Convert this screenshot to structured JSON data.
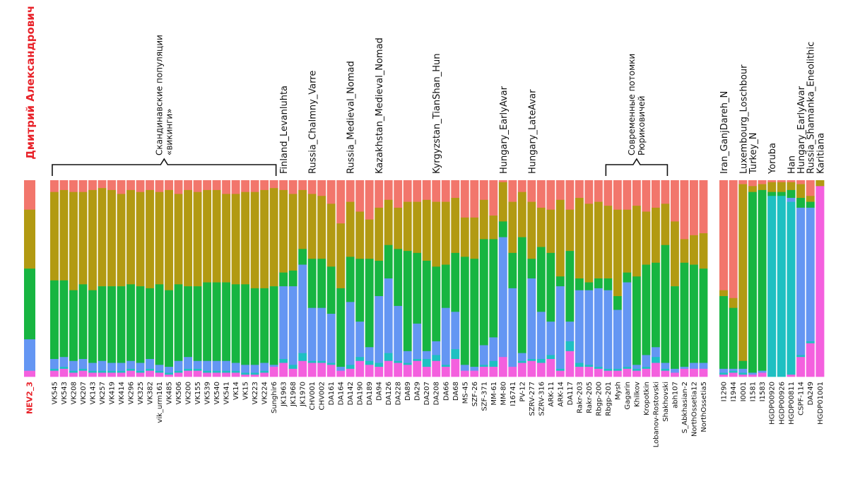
{
  "chart_data": {
    "type": "bar",
    "stacked": true,
    "orientation": "vertical",
    "ylim": [
      0,
      1
    ],
    "component_colors": [
      "#F2766C",
      "#B29A12",
      "#17B541",
      "#6496F3",
      "#1EC0C2",
      "#F460DE"
    ],
    "author": "Дмитрий Александрович",
    "groups": [
      {
        "id": "ref",
        "samples": [
          "NEV2_3"
        ],
        "values": [
          [
            0.15,
            0.3,
            0.36,
            0.16,
            0.0,
            0.03
          ]
        ]
      },
      {
        "id": "main",
        "samples": [
          "VK545",
          "VK543",
          "VK208",
          "VK207",
          "VK143",
          "VK257",
          "VK419",
          "VK414",
          "VK296",
          "VK325",
          "VK382",
          "vik_urm161",
          "VK485",
          "VK506",
          "VK200",
          "VK155",
          "VK539",
          "VK540",
          "VK541",
          "VK14",
          "VK15",
          "VK223",
          "VK224",
          "Sunghir6",
          "JK1963",
          "JK1968",
          "JK1970",
          "CHV001",
          "CHV002",
          "DA161",
          "DA164",
          "DA142",
          "DA190",
          "DA189",
          "DA94",
          "DA126",
          "DA228",
          "DA89",
          "DA29",
          "DA207",
          "DA208",
          "DA66",
          "DA68",
          "MS-45",
          "SZF-26",
          "SZF-371",
          "MM-61",
          "MM-80",
          "I16741",
          "PV-12",
          "SZRV-277",
          "SZRV-316",
          "ARK-11",
          "ARK-14",
          "DA117",
          "Rakr-203",
          "Rakr-205",
          "Rbgp-200",
          "Rbgp-201",
          "Mysh",
          "Gagarin",
          "Khilkov",
          "Kropotkin",
          "Lobanov-Rostovski",
          "Shakhovski",
          "abh107",
          "S_Abkhasian-2",
          "NorthOssetia12",
          "NorthOssetia5"
        ],
        "values": [
          [
            0.06,
            0.45,
            0.4,
            0.05,
            0.01,
            0.03
          ],
          [
            0.05,
            0.46,
            0.39,
            0.05,
            0.01,
            0.04
          ],
          [
            0.06,
            0.5,
            0.36,
            0.05,
            0.01,
            0.02
          ],
          [
            0.06,
            0.47,
            0.38,
            0.05,
            0.01,
            0.03
          ],
          [
            0.05,
            0.51,
            0.37,
            0.04,
            0.01,
            0.02
          ],
          [
            0.04,
            0.5,
            0.38,
            0.05,
            0.01,
            0.02
          ],
          [
            0.05,
            0.49,
            0.39,
            0.04,
            0.01,
            0.02
          ],
          [
            0.07,
            0.47,
            0.39,
            0.04,
            0.01,
            0.02
          ],
          [
            0.05,
            0.48,
            0.39,
            0.04,
            0.01,
            0.03
          ],
          [
            0.06,
            0.48,
            0.39,
            0.04,
            0.01,
            0.02
          ],
          [
            0.05,
            0.5,
            0.36,
            0.05,
            0.01,
            0.03
          ],
          [
            0.06,
            0.47,
            0.41,
            0.03,
            0.01,
            0.02
          ],
          [
            0.05,
            0.51,
            0.39,
            0.03,
            0.01,
            0.01
          ],
          [
            0.07,
            0.46,
            0.39,
            0.05,
            0.01,
            0.02
          ],
          [
            0.05,
            0.49,
            0.36,
            0.06,
            0.01,
            0.03
          ],
          [
            0.06,
            0.48,
            0.38,
            0.04,
            0.01,
            0.03
          ],
          [
            0.05,
            0.47,
            0.4,
            0.05,
            0.01,
            0.02
          ],
          [
            0.05,
            0.47,
            0.4,
            0.05,
            0.01,
            0.02
          ],
          [
            0.07,
            0.45,
            0.4,
            0.05,
            0.01,
            0.02
          ],
          [
            0.07,
            0.46,
            0.4,
            0.04,
            0.01,
            0.02
          ],
          [
            0.06,
            0.47,
            0.41,
            0.04,
            0.01,
            0.01
          ],
          [
            0.06,
            0.49,
            0.39,
            0.04,
            0.01,
            0.01
          ],
          [
            0.05,
            0.5,
            0.38,
            0.04,
            0.01,
            0.02
          ],
          [
            0.04,
            0.5,
            0.4,
            0.01,
            0.0,
            0.05
          ],
          [
            0.05,
            0.42,
            0.07,
            0.37,
            0.02,
            0.07
          ],
          [
            0.07,
            0.39,
            0.08,
            0.4,
            0.02,
            0.04
          ],
          [
            0.05,
            0.3,
            0.08,
            0.45,
            0.04,
            0.08
          ],
          [
            0.07,
            0.33,
            0.25,
            0.27,
            0.01,
            0.07
          ],
          [
            0.08,
            0.32,
            0.25,
            0.27,
            0.01,
            0.07
          ],
          [
            0.12,
            0.32,
            0.24,
            0.25,
            0.01,
            0.06
          ],
          [
            0.22,
            0.33,
            0.4,
            0.02,
            0.0,
            0.03
          ],
          [
            0.11,
            0.28,
            0.23,
            0.32,
            0.02,
            0.04
          ],
          [
            0.16,
            0.24,
            0.32,
            0.18,
            0.02,
            0.08
          ],
          [
            0.2,
            0.2,
            0.45,
            0.07,
            0.02,
            0.06
          ],
          [
            0.14,
            0.27,
            0.18,
            0.34,
            0.02,
            0.05
          ],
          [
            0.1,
            0.23,
            0.17,
            0.38,
            0.04,
            0.08
          ],
          [
            0.14,
            0.21,
            0.29,
            0.28,
            0.01,
            0.07
          ],
          [
            0.11,
            0.25,
            0.51,
            0.06,
            0.01,
            0.06
          ],
          [
            0.11,
            0.26,
            0.36,
            0.18,
            0.01,
            0.08
          ],
          [
            0.1,
            0.31,
            0.46,
            0.04,
            0.04,
            0.05
          ],
          [
            0.11,
            0.33,
            0.38,
            0.07,
            0.03,
            0.08
          ],
          [
            0.11,
            0.32,
            0.22,
            0.29,
            0.01,
            0.05
          ],
          [
            0.09,
            0.28,
            0.3,
            0.19,
            0.05,
            0.09
          ],
          [
            0.19,
            0.2,
            0.55,
            0.03,
            0.0,
            0.03
          ],
          [
            0.19,
            0.21,
            0.55,
            0.02,
            0.0,
            0.03
          ],
          [
            0.1,
            0.2,
            0.54,
            0.1,
            0.01,
            0.05
          ],
          [
            0.18,
            0.12,
            0.5,
            0.12,
            0.03,
            0.05
          ],
          [
            0.01,
            0.2,
            0.08,
            0.61,
            0.0,
            0.1
          ],
          [
            0.11,
            0.26,
            0.18,
            0.4,
            0.0,
            0.05
          ],
          [
            0.06,
            0.23,
            0.59,
            0.04,
            0.01,
            0.07
          ],
          [
            0.11,
            0.29,
            0.1,
            0.41,
            0.01,
            0.08
          ],
          [
            0.14,
            0.2,
            0.33,
            0.24,
            0.02,
            0.07
          ],
          [
            0.15,
            0.22,
            0.35,
            0.17,
            0.02,
            0.09
          ],
          [
            0.1,
            0.39,
            0.05,
            0.42,
            0.01,
            0.03
          ],
          [
            0.15,
            0.21,
            0.36,
            0.1,
            0.05,
            0.13
          ],
          [
            0.09,
            0.41,
            0.06,
            0.37,
            0.02,
            0.05
          ],
          [
            0.12,
            0.4,
            0.04,
            0.38,
            0.01,
            0.05
          ],
          [
            0.11,
            0.39,
            0.05,
            0.4,
            0.01,
            0.04
          ],
          [
            0.13,
            0.37,
            0.06,
            0.4,
            0.01,
            0.03
          ],
          [
            0.15,
            0.44,
            0.07,
            0.3,
            0.01,
            0.03
          ],
          [
            0.15,
            0.32,
            0.05,
            0.43,
            0.01,
            0.04
          ],
          [
            0.13,
            0.36,
            0.45,
            0.02,
            0.01,
            0.03
          ],
          [
            0.16,
            0.27,
            0.46,
            0.06,
            0.01,
            0.04
          ],
          [
            0.14,
            0.28,
            0.43,
            0.05,
            0.03,
            0.07
          ],
          [
            0.12,
            0.21,
            0.6,
            0.03,
            0.01,
            0.03
          ],
          [
            0.21,
            0.33,
            0.42,
            0.02,
            0.0,
            0.02
          ],
          [
            0.3,
            0.12,
            0.53,
            0.01,
            0.0,
            0.04
          ],
          [
            0.28,
            0.15,
            0.5,
            0.03,
            0.0,
            0.04
          ],
          [
            0.27,
            0.18,
            0.48,
            0.03,
            0.0,
            0.04
          ]
        ]
      },
      {
        "id": "outgroups",
        "samples": [
          "I1290",
          "I1944",
          "I0001",
          "I1581",
          "I1583",
          "HGDP00920",
          "HGDP00926",
          "HGDP00811",
          "CSPF-114",
          "DA249",
          "HGDP01001"
        ],
        "values": [
          [
            0.56,
            0.03,
            0.37,
            0.02,
            0.01,
            0.01
          ],
          [
            0.6,
            0.05,
            0.31,
            0.01,
            0.01,
            0.02
          ],
          [
            0.02,
            0.9,
            0.04,
            0.02,
            0.01,
            0.01
          ],
          [
            0.03,
            0.03,
            0.92,
            0.01,
            0.0,
            0.01
          ],
          [
            0.02,
            0.03,
            0.92,
            0.01,
            0.0,
            0.02
          ],
          [
            0.01,
            0.05,
            0.02,
            0.0,
            0.92,
            0.0
          ],
          [
            0.01,
            0.05,
            0.02,
            0.0,
            0.92,
            0.0
          ],
          [
            0.01,
            0.04,
            0.04,
            0.02,
            0.88,
            0.01
          ],
          [
            0.02,
            0.07,
            0.05,
            0.75,
            0.01,
            0.1
          ],
          [
            0.08,
            0.03,
            0.03,
            0.68,
            0.01,
            0.17
          ],
          [
            0.0,
            0.03,
            0.0,
            0.0,
            0.0,
            0.97
          ]
        ]
      }
    ],
    "annotations": [
      {
        "text_lines": [
          "Скандинавские популяции",
          "«викинги»"
        ],
        "from_sample": "VK545",
        "to_sample": "Sunghir6",
        "bracket": true
      },
      {
        "text_lines": [
          "Finland_Levanluhta"
        ],
        "at_sample": "JK1963",
        "bracket": false
      },
      {
        "text_lines": [
          "Russia_Chalmny_Varre"
        ],
        "at_sample": "CHV001",
        "bracket": false
      },
      {
        "text_lines": [
          "Russia_Medieval_Nomad"
        ],
        "at_sample": "DA142",
        "bracket": false
      },
      {
        "text_lines": [
          "Kazakhstan_Medieval_Nomad"
        ],
        "at_sample": "DA94",
        "bracket": false
      },
      {
        "text_lines": [
          "Kyrgyzstan_TianShan_Hun"
        ],
        "at_sample": "DA208",
        "bracket": false
      },
      {
        "text_lines": [
          "Hungary_EarlyAvar"
        ],
        "at_sample": "MM-80",
        "bracket": false
      },
      {
        "text_lines": [
          "Hungary_LateAvar"
        ],
        "at_sample": "SZRV-277",
        "bracket": false
      },
      {
        "text_lines": [
          "Современные потомки",
          "Рюриковичей"
        ],
        "from_sample": "Rbgp-201",
        "to_sample": "Shakhovski",
        "bracket": true
      },
      {
        "text_lines": [
          "Iran_GanjDareh_N"
        ],
        "at_sample": "I1290",
        "bracket": false
      },
      {
        "text_lines": [
          "Luxembourg_Loschbour"
        ],
        "at_sample": "I0001",
        "bracket": false
      },
      {
        "text_lines": [
          "Turkey_N"
        ],
        "at_sample": "I1581",
        "bracket": false
      },
      {
        "text_lines": [
          "Yoruba"
        ],
        "at_sample": "HGDP00920",
        "bracket": false
      },
      {
        "text_lines": [
          "Han"
        ],
        "at_sample": "HGDP00811",
        "bracket": false
      },
      {
        "text_lines": [
          "Hungary_EarlyAvar"
        ],
        "at_sample": "CSPF-114",
        "bracket": false
      },
      {
        "text_lines": [
          "Russia_Shamanka_Eneolithic"
        ],
        "at_sample": "DA249",
        "bracket": false
      },
      {
        "text_lines": [
          "Karitiana"
        ],
        "at_sample": "HGDP01001",
        "bracket": false
      }
    ]
  }
}
